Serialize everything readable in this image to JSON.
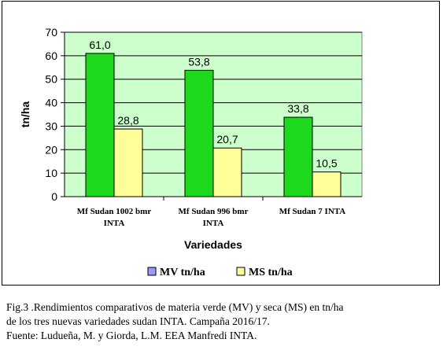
{
  "chart_data": {
    "type": "bar",
    "categories": [
      [
        "Mf Sudan 1002 bmr",
        "INTA"
      ],
      [
        "Mf Sudan 996 bmr",
        "INTA"
      ],
      [
        "Mf Sudan 7 INTA"
      ]
    ],
    "series": [
      {
        "name": "MV tn/ha",
        "values": [
          61.0,
          53.8,
          33.8
        ],
        "labels": [
          "61,0",
          "53,8",
          "33,8"
        ],
        "color": "#1ed81e",
        "legend_color": "#9999ff"
      },
      {
        "name": "MS tn/ha",
        "values": [
          28.8,
          20.7,
          10.5
        ],
        "labels": [
          "28,8",
          "20,7",
          "10,5"
        ],
        "color": "#ffff99",
        "legend_color": "#ffff99"
      }
    ],
    "xlabel": "Variedades",
    "ylabel": "tn/ha",
    "ylim": [
      0,
      70
    ],
    "yticks": [
      0,
      10,
      20,
      30,
      40,
      50,
      60,
      70
    ],
    "grid": true,
    "plot_background": "#ccffcc",
    "legend_position": "bottom"
  },
  "caption": {
    "line1": "Fig.3 .Rendimientos comparativos de materia verde (MV) y seca (MS) en tn/ha",
    "line2": "de los tres nuevas variedades sudan INTA. Campaña 2016/17.",
    "line3": "Fuente: Ludueña, M. y Giorda, L.M. EEA Manfredi INTA."
  }
}
